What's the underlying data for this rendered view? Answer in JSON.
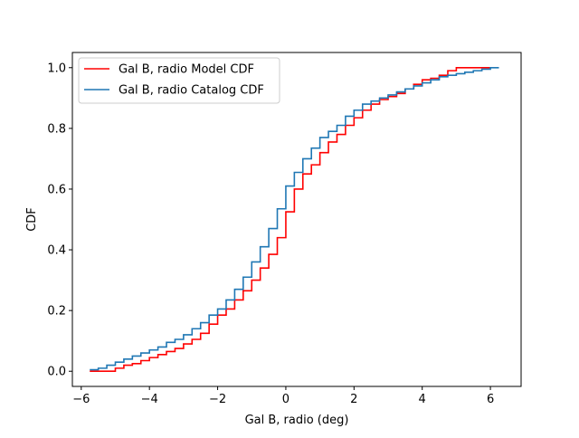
{
  "chart_data": {
    "type": "line",
    "title": "",
    "xlabel": "Gal B, radio (deg)",
    "ylabel": "CDF",
    "xlim": [
      -6.26,
      6.9
    ],
    "ylim": [
      -0.05,
      1.05
    ],
    "xticks": [
      -6,
      -4,
      -2,
      0,
      2,
      4,
      6
    ],
    "xtick_labels": [
      "−6",
      "−4",
      "−2",
      "0",
      "2",
      "4",
      "6"
    ],
    "yticks": [
      0.0,
      0.2,
      0.4,
      0.6,
      0.8,
      1.0
    ],
    "ytick_labels": [
      "0.0",
      "0.2",
      "0.4",
      "0.6",
      "0.8",
      "1.0"
    ],
    "grid": false,
    "legend_position": "upper-left",
    "series": [
      {
        "name": "Gal B, radio Model CDF",
        "color": "#ff0000",
        "step": "post",
        "x": [
          -5.75,
          -5.5,
          -5.25,
          -5.0,
          -4.75,
          -4.5,
          -4.25,
          -4.0,
          -3.75,
          -3.5,
          -3.25,
          -3.0,
          -2.75,
          -2.5,
          -2.25,
          -2.0,
          -1.75,
          -1.5,
          -1.25,
          -1.0,
          -0.75,
          -0.5,
          -0.25,
          0.0,
          0.25,
          0.5,
          0.75,
          1.0,
          1.25,
          1.5,
          1.75,
          2.0,
          2.25,
          2.5,
          2.75,
          3.0,
          3.25,
          3.5,
          3.75,
          4.0,
          4.25,
          4.5,
          4.75,
          5.0,
          5.25,
          5.5,
          5.75,
          6.0
        ],
        "y": [
          0.0,
          0.0,
          0.0,
          0.01,
          0.02,
          0.025,
          0.035,
          0.045,
          0.055,
          0.065,
          0.075,
          0.09,
          0.105,
          0.125,
          0.155,
          0.185,
          0.205,
          0.235,
          0.265,
          0.3,
          0.34,
          0.385,
          0.44,
          0.525,
          0.6,
          0.65,
          0.68,
          0.72,
          0.755,
          0.78,
          0.81,
          0.835,
          0.86,
          0.88,
          0.895,
          0.905,
          0.915,
          0.93,
          0.945,
          0.96,
          0.965,
          0.975,
          0.99,
          1.0,
          1.0,
          1.0,
          1.0,
          1.0
        ]
      },
      {
        "name": "Gal B, radio Catalog CDF",
        "color": "#1f77b4",
        "step": "post",
        "x": [
          -5.75,
          -5.5,
          -5.25,
          -5.0,
          -4.75,
          -4.5,
          -4.25,
          -4.0,
          -3.75,
          -3.5,
          -3.25,
          -3.0,
          -2.75,
          -2.5,
          -2.25,
          -2.0,
          -1.75,
          -1.5,
          -1.25,
          -1.0,
          -0.75,
          -0.5,
          -0.25,
          0.0,
          0.25,
          0.5,
          0.75,
          1.0,
          1.25,
          1.5,
          1.75,
          2.0,
          2.25,
          2.5,
          2.75,
          3.0,
          3.25,
          3.5,
          3.75,
          4.0,
          4.25,
          4.5,
          4.75,
          5.0,
          5.25,
          5.5,
          5.75,
          6.0,
          6.25
        ],
        "y": [
          0.005,
          0.01,
          0.02,
          0.03,
          0.04,
          0.05,
          0.06,
          0.07,
          0.08,
          0.095,
          0.105,
          0.12,
          0.14,
          0.16,
          0.185,
          0.205,
          0.235,
          0.27,
          0.31,
          0.36,
          0.41,
          0.47,
          0.535,
          0.61,
          0.655,
          0.7,
          0.735,
          0.77,
          0.79,
          0.81,
          0.84,
          0.86,
          0.88,
          0.89,
          0.9,
          0.91,
          0.92,
          0.93,
          0.94,
          0.95,
          0.96,
          0.97,
          0.975,
          0.98,
          0.985,
          0.99,
          0.995,
          1.0,
          1.0
        ]
      }
    ]
  }
}
